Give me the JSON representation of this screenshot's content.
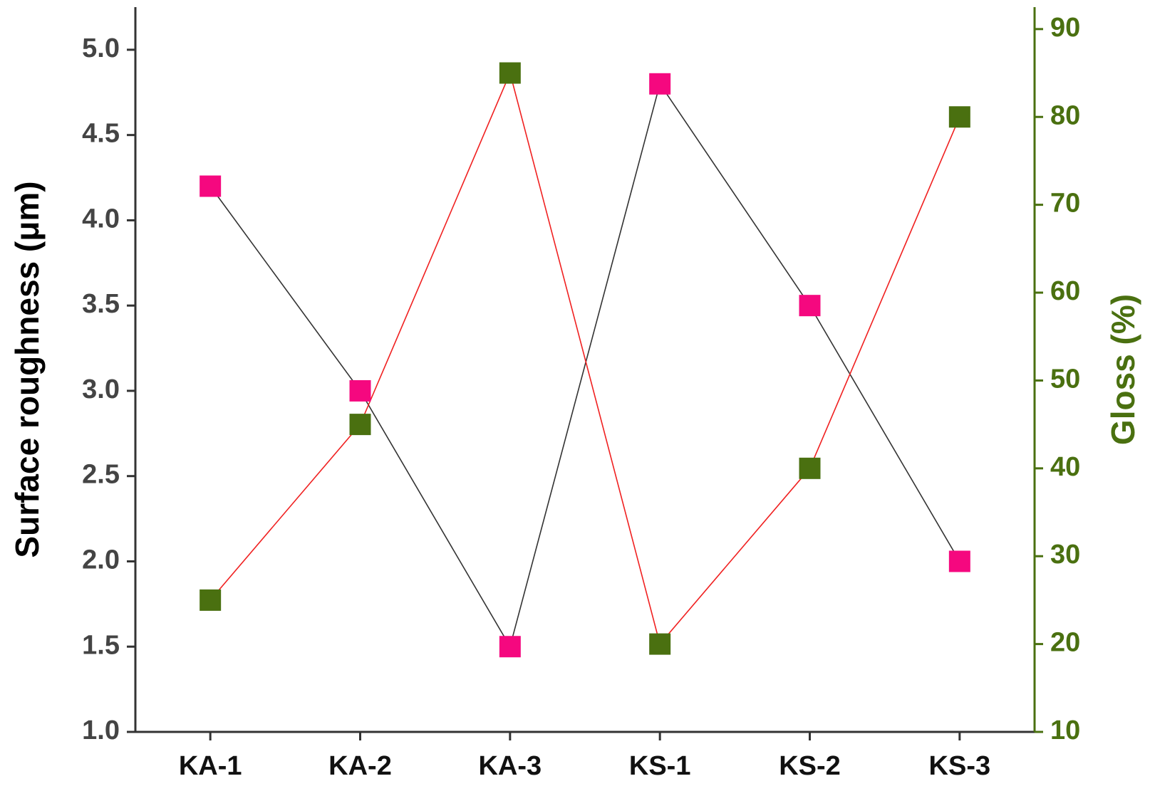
{
  "chart_data": {
    "type": "line",
    "categories": [
      "KA-1",
      "KA-2",
      "KA-3",
      "KS-1",
      "KS-2",
      "KS-3"
    ],
    "ylabel": "Surface roughness (μm)",
    "y2label": "Gloss (%)",
    "ylim": [
      1,
      5.25
    ],
    "yticks": [
      {
        "value": 1,
        "label": "1.0"
      },
      {
        "value": 1.5,
        "label": "1.5"
      },
      {
        "value": 2,
        "label": "2.0"
      },
      {
        "value": 2.5,
        "label": "2.5"
      },
      {
        "value": 3,
        "label": "3.0"
      },
      {
        "value": 3.5,
        "label": "3.5"
      },
      {
        "value": 4,
        "label": "4.0"
      },
      {
        "value": 4.5,
        "label": "4.5"
      },
      {
        "value": 5,
        "label": "5.0"
      }
    ],
    "y2lim": [
      10,
      92.5
    ],
    "y2ticks": [
      10,
      20,
      30,
      40,
      50,
      60,
      70,
      80,
      90
    ],
    "y_color": "#444444",
    "y2_color": "#4a7010",
    "series": [
      {
        "values": [
          4.2,
          3.0,
          1.5,
          4.8,
          3.5,
          2.0
        ],
        "color": "#f5087f",
        "line_color": "#333333"
      },
      {
        "values": [
          25,
          45,
          85,
          20,
          40,
          80
        ],
        "color": "#4a7010",
        "line_color": "#f02020",
        "axis": "y2"
      }
    ]
  }
}
